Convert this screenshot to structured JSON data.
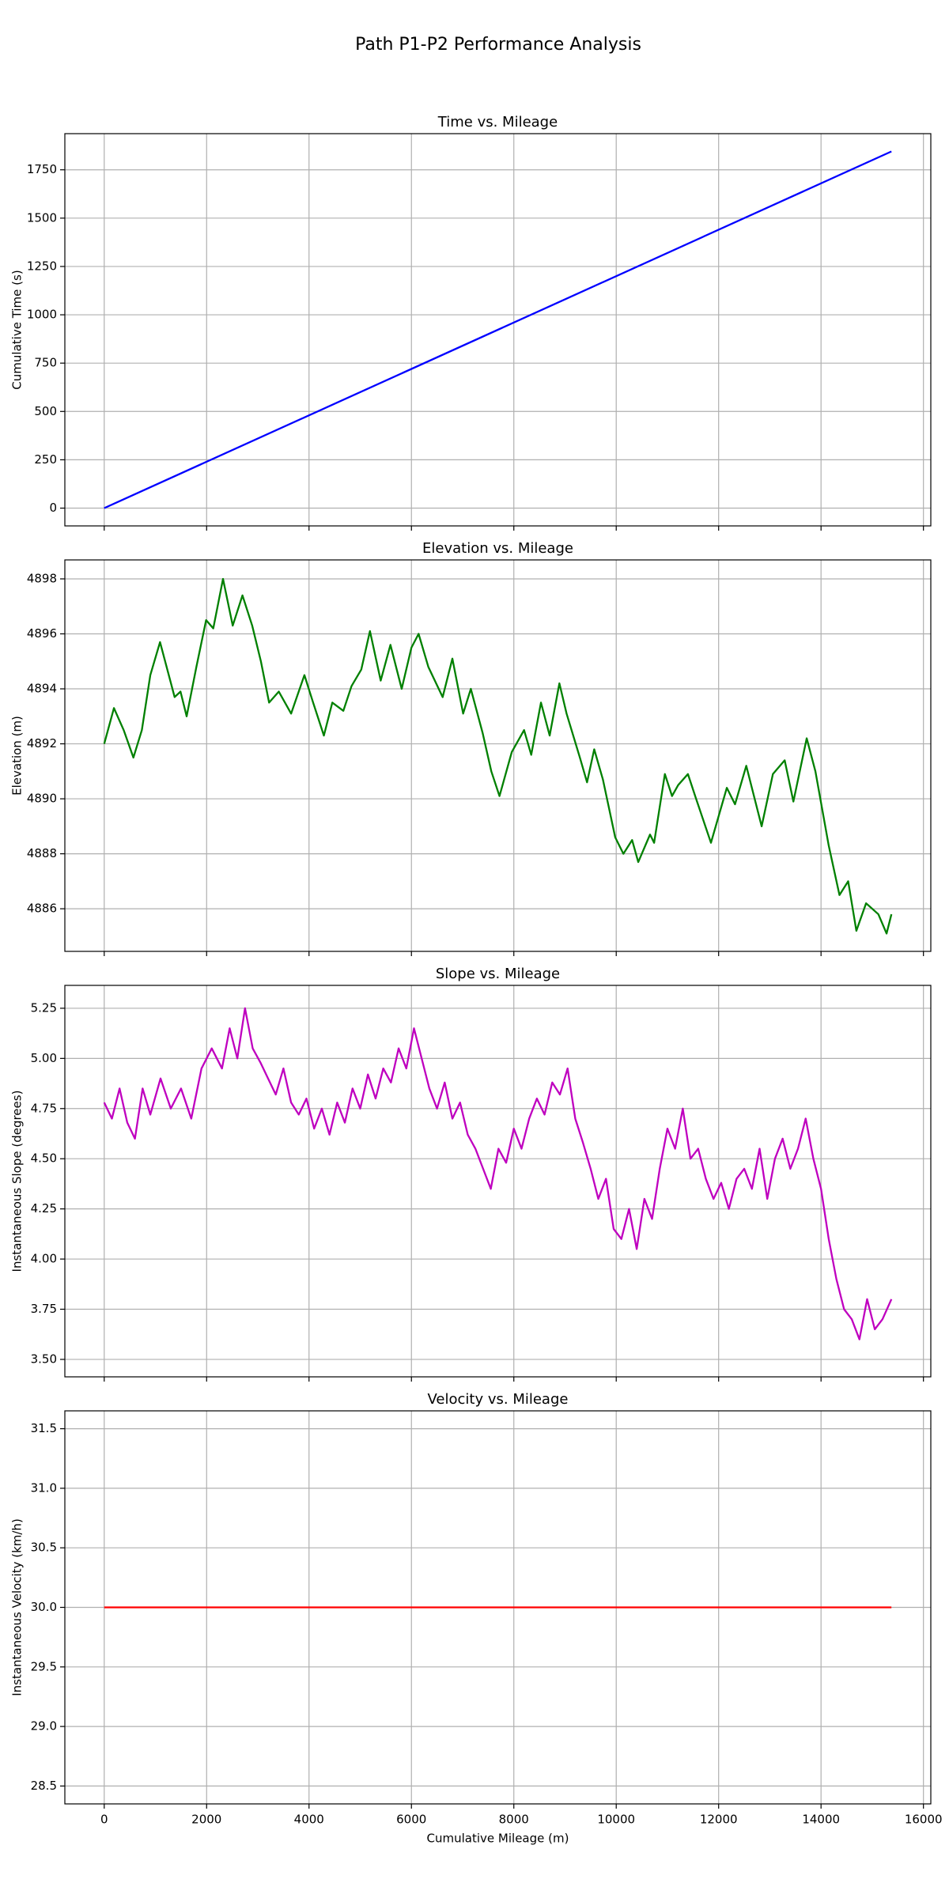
{
  "title": "Path P1-P2 Performance Analysis",
  "chart_data": [
    {
      "type": "line",
      "title": "Time vs. Mileage",
      "ylabel": "Cumulative Time (s)",
      "x": [
        0,
        15375
      ],
      "values": [
        0,
        1845
      ],
      "color": "#0000ff",
      "xlim": [
        -769,
        16144
      ],
      "xticks": [
        0,
        2000,
        4000,
        6000,
        8000,
        10000,
        12000,
        14000,
        16000
      ],
      "ylim": [
        -92,
        1937
      ],
      "yticks": [
        0,
        250,
        500,
        750,
        1000,
        1250,
        1500,
        1750
      ],
      "grid": true,
      "show_xtick_labels": false
    },
    {
      "type": "line",
      "title": "Elevation vs. Mileage",
      "ylabel": "Elevation (m)",
      "x": [
        0,
        190,
        380,
        570,
        735,
        900,
        1090,
        1375,
        1490,
        1610,
        1800,
        1990,
        2130,
        2320,
        2510,
        2700,
        2890,
        3060,
        3220,
        3410,
        3650,
        3910,
        4080,
        4290,
        4455,
        4670,
        4830,
        5020,
        5190,
        5400,
        5590,
        5810,
        6000,
        6140,
        6330,
        6610,
        6800,
        7010,
        7160,
        7390,
        7560,
        7720,
        7960,
        8200,
        8340,
        8530,
        8700,
        8890,
        9030,
        9290,
        9430,
        9570,
        9740,
        9980,
        10140,
        10310,
        10430,
        10660,
        10740,
        10950,
        11090,
        11210,
        11400,
        11560,
        11850,
        12160,
        12320,
        12540,
        12840,
        13060,
        13290,
        13460,
        13720,
        13890,
        14150,
        14360,
        14530,
        14690,
        14880,
        15120,
        15280,
        15375
      ],
      "values": [
        4892.0,
        4893.3,
        4892.5,
        4891.5,
        4892.5,
        4894.5,
        4895.7,
        4893.7,
        4893.9,
        4893.0,
        4894.8,
        4896.5,
        4896.2,
        4898.0,
        4896.3,
        4897.4,
        4896.3,
        4895.0,
        4893.5,
        4893.9,
        4893.1,
        4894.5,
        4893.5,
        4892.3,
        4893.5,
        4893.2,
        4894.1,
        4894.7,
        4896.1,
        4894.3,
        4895.6,
        4894.0,
        4895.5,
        4896.0,
        4894.8,
        4893.7,
        4895.1,
        4893.1,
        4894.0,
        4892.4,
        4891.0,
        4890.1,
        4891.7,
        4892.5,
        4891.6,
        4893.5,
        4892.3,
        4894.2,
        4893.1,
        4891.5,
        4890.6,
        4891.8,
        4890.7,
        4888.6,
        4888.0,
        4888.5,
        4887.7,
        4888.7,
        4888.4,
        4890.9,
        4890.1,
        4890.5,
        4890.9,
        4890.0,
        4888.4,
        4890.4,
        4889.8,
        4891.2,
        4889.0,
        4890.9,
        4891.4,
        4889.9,
        4892.2,
        4891.0,
        4888.3,
        4886.5,
        4887.0,
        4885.2,
        4886.2,
        4885.8,
        4885.1,
        4885.8
      ],
      "color": "#008000",
      "xlim": [
        -769,
        16144
      ],
      "xticks": [
        0,
        2000,
        4000,
        6000,
        8000,
        10000,
        12000,
        14000,
        16000
      ],
      "ylim": [
        4884.45,
        4898.69
      ],
      "yticks": [
        4886,
        4888,
        4890,
        4892,
        4894,
        4896,
        4898
      ],
      "grid": true,
      "show_xtick_labels": false
    },
    {
      "type": "line",
      "title": "Slope vs. Mileage",
      "ylabel": "Instantaneous Slope (degrees)",
      "x": [
        0,
        150,
        300,
        450,
        600,
        750,
        900,
        1100,
        1300,
        1500,
        1700,
        1900,
        2100,
        2300,
        2450,
        2600,
        2750,
        2900,
        3050,
        3200,
        3350,
        3500,
        3650,
        3800,
        3950,
        4100,
        4250,
        4400,
        4550,
        4700,
        4850,
        5000,
        5150,
        5300,
        5450,
        5600,
        5750,
        5900,
        6050,
        6200,
        6350,
        6500,
        6650,
        6800,
        6950,
        7100,
        7250,
        7400,
        7550,
        7700,
        7850,
        8000,
        8150,
        8300,
        8450,
        8600,
        8750,
        8900,
        9050,
        9200,
        9350,
        9500,
        9650,
        9800,
        9950,
        10100,
        10250,
        10400,
        10550,
        10700,
        10850,
        11000,
        11150,
        11300,
        11450,
        11600,
        11750,
        11900,
        12050,
        12200,
        12350,
        12500,
        12650,
        12800,
        12950,
        13100,
        13250,
        13400,
        13550,
        13700,
        13850,
        14000,
        14150,
        14300,
        14450,
        14600,
        14750,
        14900,
        15050,
        15200,
        15375
      ],
      "values": [
        4.78,
        4.7,
        4.85,
        4.68,
        4.6,
        4.85,
        4.72,
        4.9,
        4.75,
        4.85,
        4.7,
        4.95,
        5.05,
        4.95,
        5.15,
        5.0,
        5.25,
        5.05,
        4.98,
        4.9,
        4.82,
        4.95,
        4.78,
        4.72,
        4.8,
        4.65,
        4.75,
        4.62,
        4.78,
        4.68,
        4.85,
        4.75,
        4.92,
        4.8,
        4.95,
        4.88,
        5.05,
        4.95,
        5.15,
        5.0,
        4.85,
        4.75,
        4.88,
        4.7,
        4.78,
        4.62,
        4.55,
        4.45,
        4.35,
        4.55,
        4.48,
        4.65,
        4.55,
        4.7,
        4.8,
        4.72,
        4.88,
        4.82,
        4.95,
        4.7,
        4.58,
        4.45,
        4.3,
        4.4,
        4.15,
        4.1,
        4.25,
        4.05,
        4.3,
        4.2,
        4.45,
        4.65,
        4.55,
        4.75,
        4.5,
        4.55,
        4.4,
        4.3,
        4.38,
        4.25,
        4.4,
        4.45,
        4.35,
        4.55,
        4.3,
        4.5,
        4.6,
        4.45,
        4.55,
        4.7,
        4.5,
        4.35,
        4.1,
        3.9,
        3.75,
        3.7,
        3.6,
        3.8,
        3.65,
        3.7,
        3.8
      ],
      "color": "#bf00bf",
      "xlim": [
        -769,
        16144
      ],
      "xticks": [
        0,
        2000,
        4000,
        6000,
        8000,
        10000,
        12000,
        14000,
        16000
      ],
      "ylim": [
        3.413,
        5.364
      ],
      "yticks": [
        {
          "value": 3.5,
          "label": "3.50"
        },
        3.75,
        {
          "value": 4,
          "label": "4.00"
        },
        4.25,
        {
          "value": 4.5,
          "label": "4.50"
        },
        4.75,
        {
          "value": 5,
          "label": "5.00"
        },
        5.25
      ],
      "grid": true,
      "show_xtick_labels": false
    },
    {
      "type": "line",
      "title": "Velocity vs. Mileage",
      "ylabel": "Instantaneous Velocity (km/h)",
      "xlabel": "Cumulative Mileage (m)",
      "x": [
        0,
        15375
      ],
      "values": [
        30,
        30
      ],
      "color": "#ff0000",
      "xlim": [
        -769,
        16144
      ],
      "xticks": [
        0,
        2000,
        4000,
        6000,
        8000,
        10000,
        12000,
        14000,
        16000
      ],
      "ylim": [
        28.35,
        31.65
      ],
      "yticks": [
        28.5,
        {
          "value": 29,
          "label": "29.0"
        },
        29.5,
        {
          "value": 30,
          "label": "30.0"
        },
        30.5,
        {
          "value": 31,
          "label": "31.0"
        },
        31.5
      ],
      "grid": true,
      "show_xtick_labels": true
    }
  ]
}
